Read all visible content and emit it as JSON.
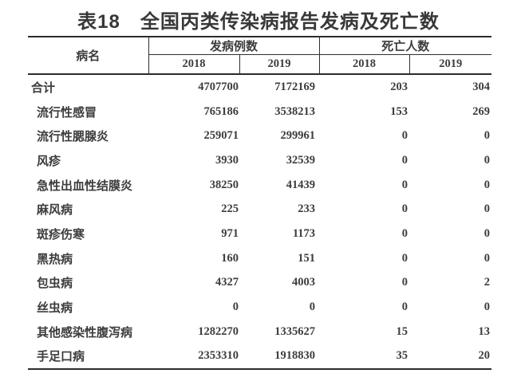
{
  "title": "表18　全国丙类传染病报告发病及死亡数",
  "table": {
    "col_disease": "病名",
    "group_cases": "发病例数",
    "group_deaths": "死亡人数",
    "years": [
      "2018",
      "2019",
      "2018",
      "2019"
    ],
    "rows": [
      {
        "name": "合计",
        "cases_2018": "4707700",
        "cases_2019": "7172169",
        "deaths_2018": "203",
        "deaths_2019": "304"
      },
      {
        "name": "流行性感冒",
        "cases_2018": "765186",
        "cases_2019": "3538213",
        "deaths_2018": "153",
        "deaths_2019": "269"
      },
      {
        "name": "流行性腮腺炎",
        "cases_2018": "259071",
        "cases_2019": "299961",
        "deaths_2018": "0",
        "deaths_2019": "0"
      },
      {
        "name": "风疹",
        "cases_2018": "3930",
        "cases_2019": "32539",
        "deaths_2018": "0",
        "deaths_2019": "0"
      },
      {
        "name": "急性出血性结膜炎",
        "cases_2018": "38250",
        "cases_2019": "41439",
        "deaths_2018": "0",
        "deaths_2019": "0"
      },
      {
        "name": "麻风病",
        "cases_2018": "225",
        "cases_2019": "233",
        "deaths_2018": "0",
        "deaths_2019": "0"
      },
      {
        "name": "斑疹伤寒",
        "cases_2018": "971",
        "cases_2019": "1173",
        "deaths_2018": "0",
        "deaths_2019": "0"
      },
      {
        "name": "黑热病",
        "cases_2018": "160",
        "cases_2019": "151",
        "deaths_2018": "0",
        "deaths_2019": "0"
      },
      {
        "name": "包虫病",
        "cases_2018": "4327",
        "cases_2019": "4003",
        "deaths_2018": "0",
        "deaths_2019": "2"
      },
      {
        "name": "丝虫病",
        "cases_2018": "0",
        "cases_2019": "0",
        "deaths_2018": "0",
        "deaths_2019": "0"
      },
      {
        "name": "其他感染性腹泻病",
        "cases_2018": "1282270",
        "cases_2019": "1335627",
        "deaths_2018": "15",
        "deaths_2019": "13"
      },
      {
        "name": "手足口病",
        "cases_2018": "2353310",
        "cases_2019": "1918830",
        "deaths_2018": "35",
        "deaths_2019": "20"
      }
    ]
  }
}
